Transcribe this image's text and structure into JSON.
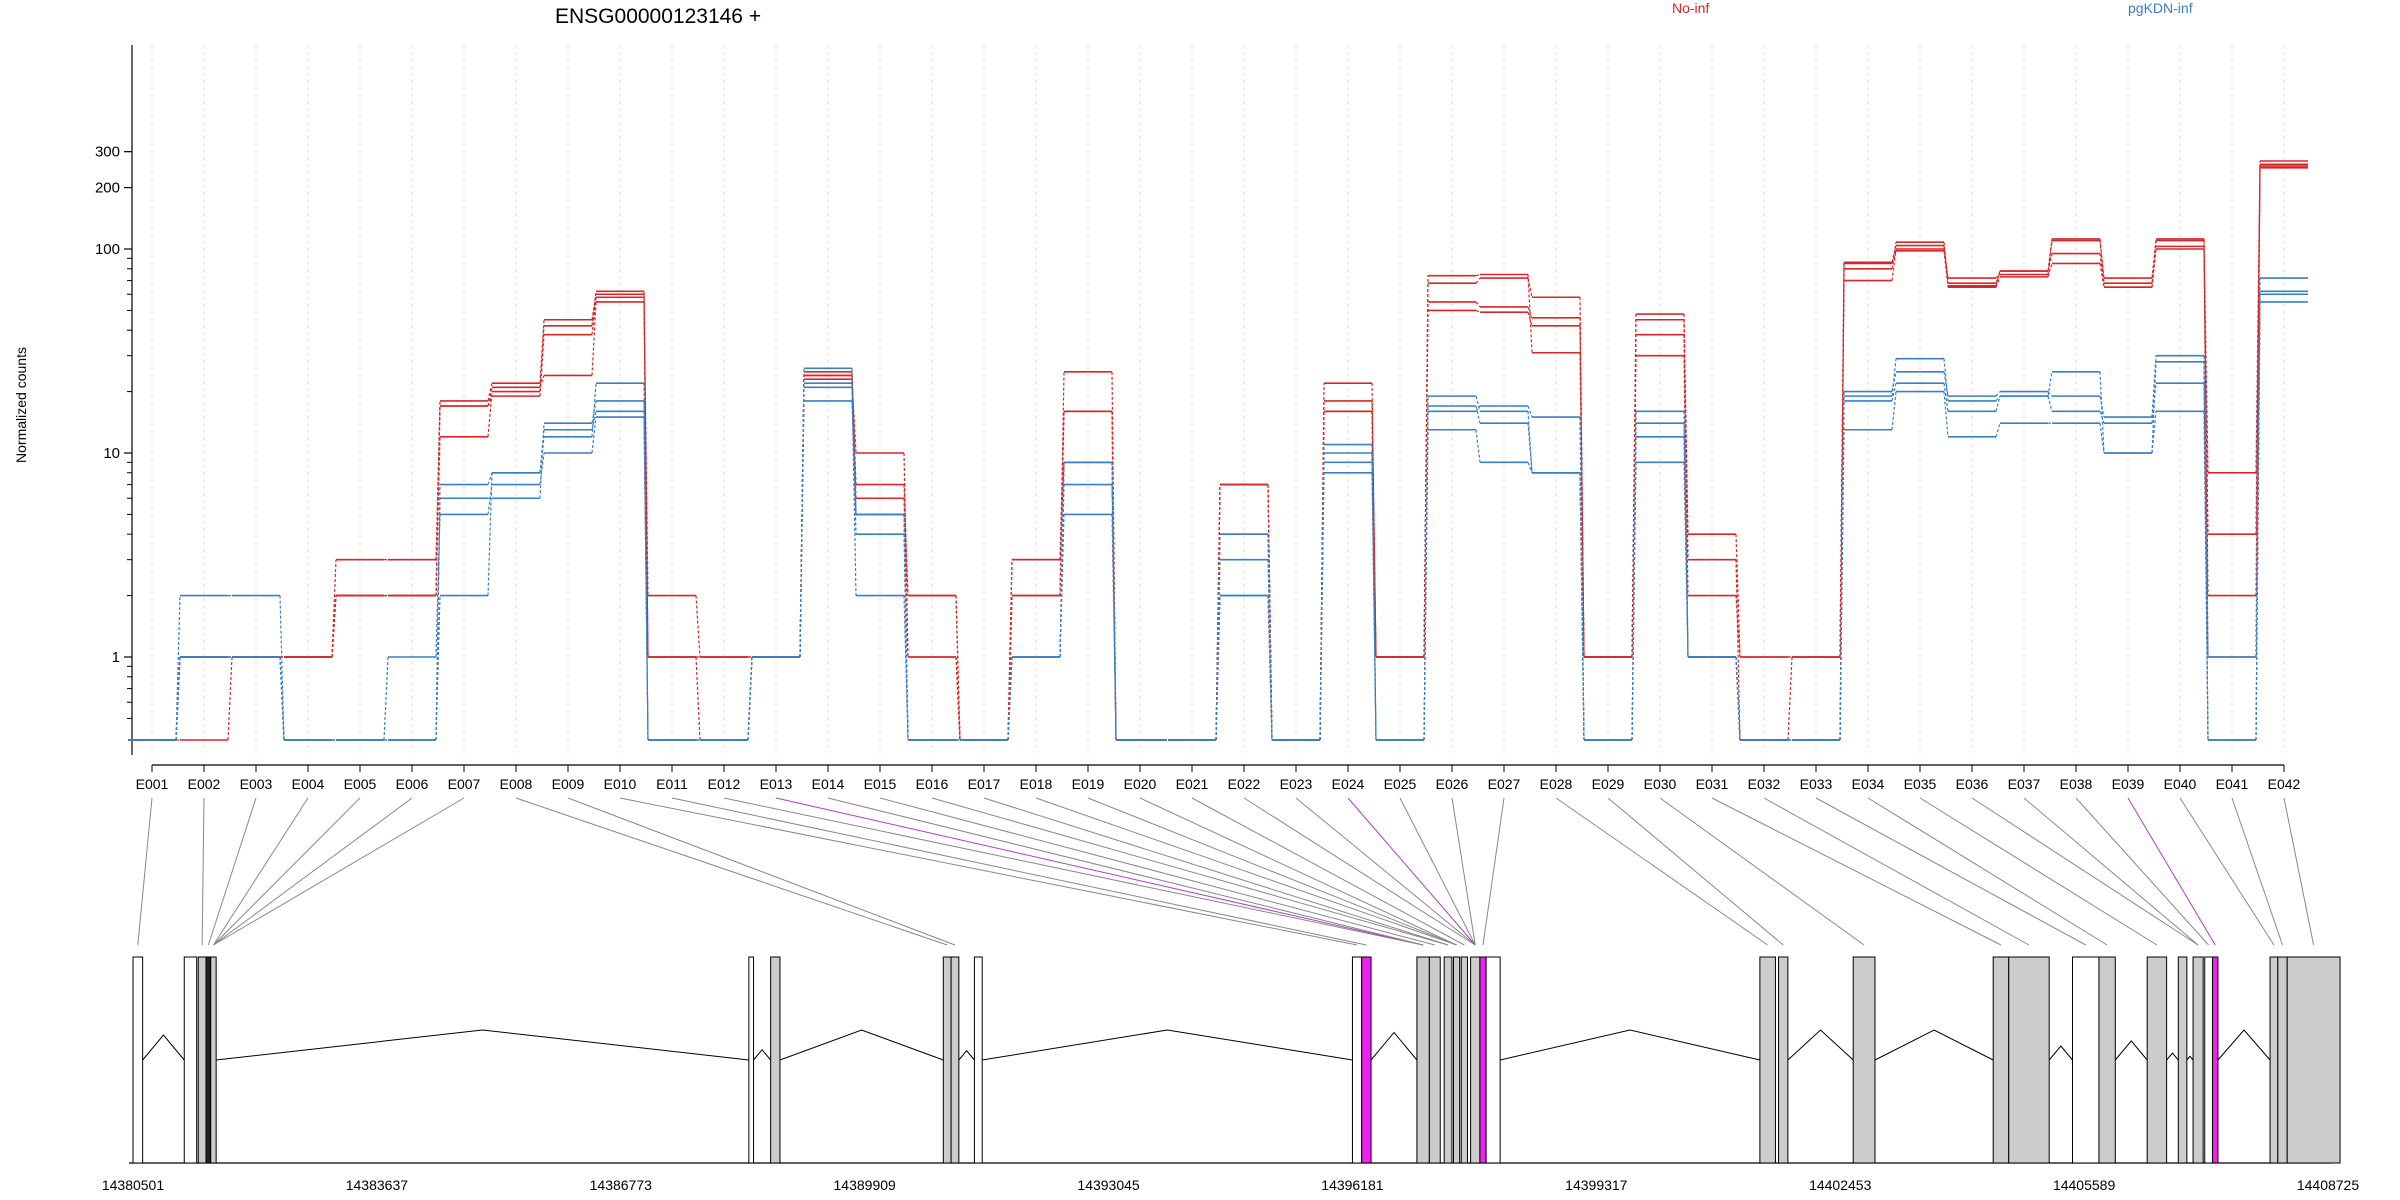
{
  "chart_data": {
    "type": "line",
    "title": "ENSG00000123146 +",
    "ylabel": "Normalized counts",
    "yscale": "log",
    "yticks": [
      1,
      10,
      100,
      200,
      300
    ],
    "legend": [
      {
        "name": "No-inf",
        "color": "#d62728"
      },
      {
        "name": "pgKDN-inf",
        "color": "#3a7fc0"
      }
    ],
    "exons": [
      "E001",
      "E002",
      "E003",
      "E004",
      "E005",
      "E006",
      "E007",
      "E008",
      "E009",
      "E010",
      "E011",
      "E012",
      "E013",
      "E014",
      "E015",
      "E016",
      "E017",
      "E018",
      "E019",
      "E020",
      "E021",
      "E022",
      "E023",
      "E024",
      "E025",
      "E026",
      "E027",
      "E028",
      "E029",
      "E030",
      "E031",
      "E032",
      "E033",
      "E034",
      "E035",
      "E036",
      "E037",
      "E038",
      "E039",
      "E040",
      "E041",
      "E042"
    ],
    "series": [
      {
        "group": "No-inf",
        "color": "#d62728",
        "values": [
          0.4,
          0.4,
          1,
          1,
          2,
          2,
          17,
          19,
          38,
          58,
          1,
          1,
          1,
          24,
          5,
          2,
          0.4,
          2,
          25,
          0.4,
          0.4,
          7,
          0.4,
          18,
          1,
          55,
          52,
          46,
          1,
          48,
          3,
          0.4,
          1,
          85,
          98,
          65,
          73,
          85,
          65,
          100,
          4,
          255
        ]
      },
      {
        "group": "No-inf",
        "color": "#d62728",
        "values": [
          0.4,
          1,
          1,
          1,
          2,
          2,
          12,
          20,
          42,
          62,
          2,
          1,
          1,
          25,
          7,
          2,
          0.4,
          2,
          16,
          0.4,
          0.4,
          4,
          0.4,
          22,
          1,
          50,
          49,
          42,
          1,
          38,
          2,
          1,
          1,
          70,
          100,
          72,
          75,
          110,
          72,
          110,
          8,
          270
        ]
      },
      {
        "group": "No-inf",
        "color": "#d62728",
        "values": [
          0.4,
          1,
          1,
          1,
          3,
          3,
          18,
          22,
          45,
          60,
          1,
          0.4,
          1,
          23,
          10,
          1,
          0.4,
          3,
          16,
          0.4,
          0.4,
          7,
          0.4,
          16,
          1,
          68,
          72,
          58,
          1,
          45,
          4,
          1,
          1,
          80,
          108,
          68,
          78,
          112,
          68,
          112,
          2,
          250
        ]
      },
      {
        "group": "No-inf",
        "color": "#d62728",
        "values": [
          0.4,
          1,
          1,
          1,
          2,
          2,
          17,
          21,
          24,
          55,
          1,
          1,
          1,
          24,
          6,
          1,
          0.4,
          3,
          9,
          0.4,
          0.4,
          7,
          0.4,
          16,
          1,
          74,
          75,
          31,
          1,
          30,
          1,
          0.4,
          0.4,
          86,
          104,
          66,
          78,
          95,
          65,
          103,
          1,
          260
        ]
      },
      {
        "group": "pgKDN-inf",
        "color": "#3a7fc0",
        "values": [
          0.4,
          1,
          1,
          0.4,
          0.4,
          1,
          5,
          7,
          10,
          15,
          0.4,
          0.4,
          1,
          21,
          4,
          0.4,
          0.4,
          1,
          5,
          0.4,
          0.4,
          2,
          0.4,
          10,
          0.4,
          13,
          9,
          8,
          0.4,
          9,
          1,
          0.4,
          0.4,
          13,
          20,
          12,
          14,
          14,
          10,
          16,
          0.4,
          55
        ]
      },
      {
        "group": "pgKDN-inf",
        "color": "#3a7fc0",
        "values": [
          0.4,
          2,
          2,
          0.4,
          0.4,
          0.4,
          2,
          8,
          13,
          16,
          0.4,
          0.4,
          1,
          18,
          5,
          0.4,
          0.4,
          1,
          9,
          0.4,
          0.4,
          4,
          0.4,
          8,
          0.4,
          16,
          17,
          15,
          0.4,
          12,
          1,
          0.4,
          0.4,
          18,
          22,
          16,
          19,
          16,
          14,
          22,
          1,
          62
        ]
      },
      {
        "group": "pgKDN-inf",
        "color": "#3a7fc0",
        "values": [
          0.4,
          1,
          1,
          0.4,
          0.4,
          0.4,
          6,
          6,
          14,
          18,
          0.4,
          0.4,
          1,
          26,
          5,
          0.4,
          0.4,
          1,
          9,
          0.4,
          0.4,
          3,
          0.4,
          11,
          0.4,
          19,
          16,
          8,
          0.4,
          16,
          1,
          0.4,
          0.4,
          20,
          25,
          19,
          20,
          19,
          15,
          30,
          0.4,
          72
        ]
      },
      {
        "group": "pgKDN-inf",
        "color": "#3a7fc0",
        "values": [
          0.4,
          1,
          1,
          0.4,
          0.4,
          0.4,
          7,
          8,
          12,
          22,
          0.4,
          0.4,
          1,
          22,
          2,
          0.4,
          0.4,
          1,
          7,
          0.4,
          0.4,
          2,
          0.4,
          9,
          0.4,
          17,
          14,
          8,
          0.4,
          14,
          1,
          0.4,
          0.4,
          19,
          29,
          18,
          19,
          25,
          10,
          28,
          0.4,
          60
        ]
      }
    ],
    "genome_ticks": [
      "14380501",
      "14383637",
      "14386773",
      "14389909",
      "14393045",
      "14396181",
      "14399317",
      "14402453",
      "14405589",
      "14408725"
    ],
    "genome_range": [
      14380501,
      14408725
    ],
    "exon_positions": [
      {
        "start": 14380501,
        "end": 14380625,
        "fill": "#ffffff"
      },
      {
        "start": 14381160,
        "end": 14381320,
        "fill": "#ffffff"
      },
      {
        "start": 14381340,
        "end": 14381440,
        "fill": "#cccccc"
      },
      {
        "start": 14381440,
        "end": 14381500,
        "fill": "#222222"
      },
      {
        "start": 14381500,
        "end": 14381570,
        "fill": "#cccccc"
      },
      {
        "start": 14388420,
        "end": 14388480,
        "fill": "#ffffff"
      },
      {
        "start": 14388700,
        "end": 14388820,
        "fill": "#cccccc"
      },
      {
        "start": 14390920,
        "end": 14391020,
        "fill": "#cccccc"
      },
      {
        "start": 14391020,
        "end": 14391120,
        "fill": "#cccccc"
      },
      {
        "start": 14391320,
        "end": 14391420,
        "fill": "#ffffff"
      },
      {
        "start": 14396181,
        "end": 14396300,
        "fill": "#ffffff"
      },
      {
        "start": 14396300,
        "end": 14396420,
        "fill": "#ee22ee"
      },
      {
        "start": 14397010,
        "end": 14397170,
        "fill": "#cccccc"
      },
      {
        "start": 14397170,
        "end": 14397310,
        "fill": "#cccccc"
      },
      {
        "start": 14397360,
        "end": 14397460,
        "fill": "#cccccc"
      },
      {
        "start": 14397480,
        "end": 14397560,
        "fill": "#cccccc"
      },
      {
        "start": 14397580,
        "end": 14397660,
        "fill": "#cccccc"
      },
      {
        "start": 14397700,
        "end": 14397820,
        "fill": "#cccccc"
      },
      {
        "start": 14397820,
        "end": 14397900,
        "fill": "#ee22ee"
      },
      {
        "start": 14397900,
        "end": 14398080,
        "fill": "#ffffff"
      },
      {
        "start": 14401420,
        "end": 14401620,
        "fill": "#cccccc"
      },
      {
        "start": 14401660,
        "end": 14401780,
        "fill": "#cccccc"
      },
      {
        "start": 14402620,
        "end": 14402900,
        "fill": "#cccccc"
      },
      {
        "start": 14404420,
        "end": 14404620,
        "fill": "#cccccc"
      },
      {
        "start": 14404620,
        "end": 14405140,
        "fill": "#cccccc"
      },
      {
        "start": 14405440,
        "end": 14405780,
        "fill": "#ffffff"
      },
      {
        "start": 14405780,
        "end": 14405990,
        "fill": "#cccccc"
      },
      {
        "start": 14406400,
        "end": 14406650,
        "fill": "#cccccc"
      },
      {
        "start": 14406800,
        "end": 14406910,
        "fill": "#cccccc"
      },
      {
        "start": 14406990,
        "end": 14407120,
        "fill": "#cccccc"
      },
      {
        "start": 14407140,
        "end": 14407240,
        "fill": "#ffffff"
      },
      {
        "start": 14407240,
        "end": 14407310,
        "fill": "#ee22ee"
      },
      {
        "start": 14407980,
        "end": 14408080,
        "fill": "#cccccc"
      },
      {
        "start": 14408080,
        "end": 14408200,
        "fill": "#cccccc"
      },
      {
        "start": 14408200,
        "end": 14408880,
        "fill": "#cccccc"
      }
    ],
    "exon_anchor_index": [
      0,
      2,
      3,
      4,
      4,
      4,
      4,
      7,
      8,
      10,
      11,
      12,
      12,
      12,
      13,
      14,
      14,
      15,
      15,
      15,
      16,
      17,
      17,
      17,
      17,
      17,
      18,
      20,
      21,
      22,
      23,
      24,
      25,
      26,
      27,
      29,
      29,
      30,
      31,
      32,
      33,
      34
    ],
    "highlight_exons": [
      "E013",
      "E024",
      "E039"
    ],
    "grid": "vertical-dashed"
  }
}
